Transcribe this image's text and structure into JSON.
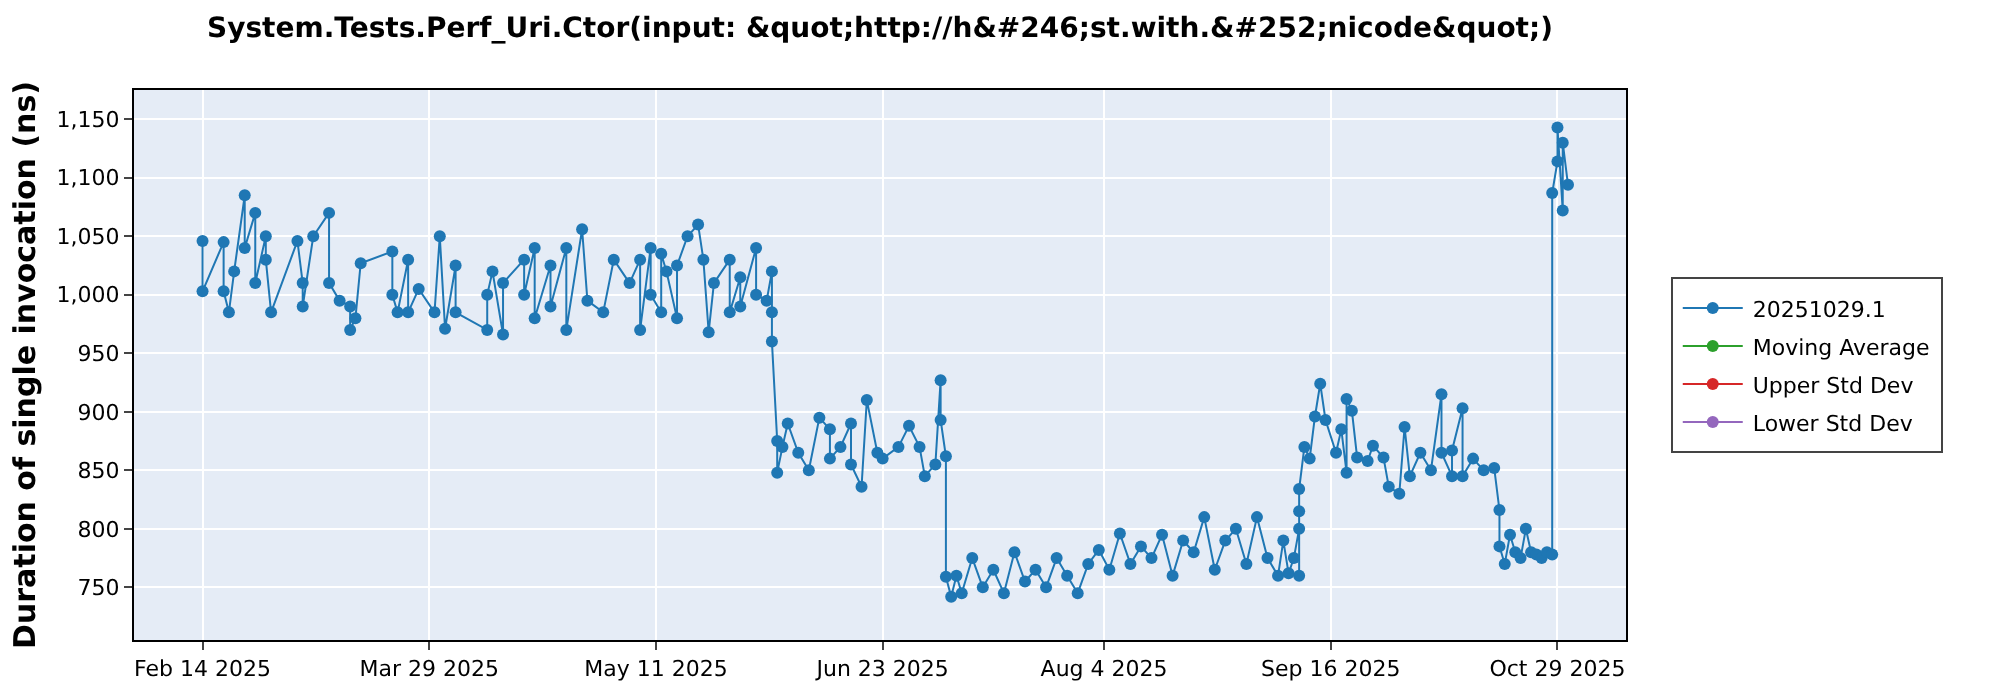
{
  "chart_data": {
    "type": "line",
    "title": "System.Tests.Perf_Uri.Ctor(input: &quot;http://h&#246;st.with.&#252;nicode&quot;)",
    "ylabel": "Duration of single invocation (ns)",
    "marker": "circle",
    "line_style": "solid",
    "grid": true,
    "legend": "right",
    "xlim": [
      "2025-02-01",
      "2025-11-11"
    ],
    "xticks": [
      {
        "value": "2025-02-14",
        "label": "Feb 14 2025"
      },
      {
        "value": "2025-03-29",
        "label": "Mar 29 2025"
      },
      {
        "value": "2025-05-11",
        "label": "May 11 2025"
      },
      {
        "value": "2025-06-23",
        "label": "Jun 23 2025"
      },
      {
        "value": "2025-08-04",
        "label": "Aug 4 2025"
      },
      {
        "value": "2025-09-16",
        "label": "Sep 16 2025"
      },
      {
        "value": "2025-10-29",
        "label": "Oct 29 2025"
      }
    ],
    "ylim": [
      705,
      1175
    ],
    "yticks": [
      750,
      800,
      850,
      900,
      950,
      {
        "value": 1000,
        "label": "1,000"
      },
      {
        "value": 1050,
        "label": "1,050"
      },
      {
        "value": 1100,
        "label": "1,100"
      },
      {
        "value": 1150,
        "label": "1,150"
      }
    ],
    "series": [
      {
        "name": "20251029.1",
        "color": "#1f77b4",
        "x": [
          "2025-02-14",
          "2025-02-14",
          "2025-02-18",
          "2025-02-18",
          "2025-02-19",
          "2025-02-20",
          "2025-02-22",
          "2025-02-22",
          "2025-02-24",
          "2025-02-24",
          "2025-02-26",
          "2025-02-26",
          "2025-02-27",
          "2025-03-04",
          "2025-03-05",
          "2025-03-05",
          "2025-03-07",
          "2025-03-10",
          "2025-03-10",
          "2025-03-12",
          "2025-03-14",
          "2025-03-14",
          "2025-03-15",
          "2025-03-16",
          "2025-03-22",
          "2025-03-22",
          "2025-03-23",
          "2025-03-25",
          "2025-03-25",
          "2025-03-27",
          "2025-03-30",
          "2025-03-31",
          "2025-04-01",
          "2025-04-03",
          "2025-04-03",
          "2025-04-09",
          "2025-04-09",
          "2025-04-10",
          "2025-04-12",
          "2025-04-12",
          "2025-04-16",
          "2025-04-16",
          "2025-04-18",
          "2025-04-18",
          "2025-04-21",
          "2025-04-21",
          "2025-04-24",
          "2025-04-24",
          "2025-04-27",
          "2025-04-28",
          "2025-05-01",
          "2025-05-03",
          "2025-05-06",
          "2025-05-08",
          "2025-05-08",
          "2025-05-10",
          "2025-05-10",
          "2025-05-12",
          "2025-05-12",
          "2025-05-13",
          "2025-05-15",
          "2025-05-15",
          "2025-05-17",
          "2025-05-19",
          "2025-05-20",
          "2025-05-21",
          "2025-05-22",
          "2025-05-25",
          "2025-05-25",
          "2025-05-27",
          "2025-05-27",
          "2025-05-30",
          "2025-05-30",
          "2025-06-01",
          "2025-06-02",
          "2025-06-02",
          "2025-06-02",
          "2025-06-03",
          "2025-06-03",
          "2025-06-04",
          "2025-06-05",
          "2025-06-07",
          "2025-06-09",
          "2025-06-11",
          "2025-06-13",
          "2025-06-13",
          "2025-06-15",
          "2025-06-17",
          "2025-06-17",
          "2025-06-19",
          "2025-06-20",
          "2025-06-22",
          "2025-06-23",
          "2025-06-26",
          "2025-06-28",
          "2025-06-30",
          "2025-07-01",
          "2025-07-03",
          "2025-07-04",
          "2025-07-04",
          "2025-07-05",
          "2025-07-05",
          "2025-07-06",
          "2025-07-07",
          "2025-07-08",
          "2025-07-10",
          "2025-07-12",
          "2025-07-14",
          "2025-07-16",
          "2025-07-18",
          "2025-07-20",
          "2025-07-22",
          "2025-07-24",
          "2025-07-26",
          "2025-07-28",
          "2025-07-30",
          "2025-08-01",
          "2025-08-03",
          "2025-08-05",
          "2025-08-07",
          "2025-08-09",
          "2025-08-11",
          "2025-08-13",
          "2025-08-15",
          "2025-08-17",
          "2025-08-19",
          "2025-08-21",
          "2025-08-23",
          "2025-08-25",
          "2025-08-27",
          "2025-08-29",
          "2025-08-31",
          "2025-09-02",
          "2025-09-04",
          "2025-09-06",
          "2025-09-07",
          "2025-09-08",
          "2025-09-09",
          "2025-09-10",
          "2025-09-10",
          "2025-09-10",
          "2025-09-10",
          "2025-09-11",
          "2025-09-12",
          "2025-09-13",
          "2025-09-14",
          "2025-09-15",
          "2025-09-17",
          "2025-09-18",
          "2025-09-19",
          "2025-09-19",
          "2025-09-20",
          "2025-09-21",
          "2025-09-23",
          "2025-09-24",
          "2025-09-26",
          "2025-09-27",
          "2025-09-29",
          "2025-09-30",
          "2025-10-01",
          "2025-10-03",
          "2025-10-05",
          "2025-10-07",
          "2025-10-07",
          "2025-10-09",
          "2025-10-09",
          "2025-10-11",
          "2025-10-11",
          "2025-10-13",
          "2025-10-15",
          "2025-10-17",
          "2025-10-18",
          "2025-10-18",
          "2025-10-19",
          "2025-10-20",
          "2025-10-21",
          "2025-10-22",
          "2025-10-23",
          "2025-10-24",
          "2025-10-25",
          "2025-10-26",
          "2025-10-27",
          "2025-10-28",
          "2025-10-28",
          "2025-10-29",
          "2025-10-29",
          "2025-10-30",
          "2025-10-30",
          "2025-10-31"
        ],
        "values": [
          1046,
          1003,
          1045,
          1003,
          985,
          1020,
          1085,
          1040,
          1070,
          1010,
          1050,
          1030,
          985,
          1046,
          1010,
          990,
          1050,
          1070,
          1010,
          995,
          990,
          970,
          980,
          1027,
          1037,
          1000,
          985,
          1030,
          985,
          1005,
          985,
          1050,
          971,
          1025,
          985,
          970,
          1000,
          1020,
          966,
          1010,
          1030,
          1000,
          1040,
          980,
          1025,
          990,
          1040,
          970,
          1056,
          995,
          985,
          1030,
          1010,
          1030,
          970,
          1040,
          1000,
          985,
          1035,
          1020,
          980,
          1025,
          1050,
          1060,
          1030,
          968,
          1010,
          1030,
          985,
          1015,
          990,
          1040,
          1000,
          995,
          1020,
          985,
          960,
          875,
          848,
          870,
          890,
          865,
          850,
          895,
          885,
          860,
          870,
          890,
          855,
          836,
          910,
          865,
          860,
          870,
          888,
          870,
          845,
          855,
          927,
          893,
          862,
          759,
          742,
          760,
          745,
          775,
          750,
          765,
          745,
          780,
          755,
          765,
          750,
          775,
          760,
          745,
          770,
          782,
          765,
          796,
          770,
          785,
          775,
          795,
          760,
          790,
          780,
          810,
          765,
          790,
          800,
          770,
          810,
          775,
          760,
          790,
          762,
          775,
          800,
          760,
          815,
          834,
          870,
          860,
          896,
          924,
          893,
          865,
          885,
          848,
          911,
          901,
          861,
          858,
          871,
          861,
          836,
          830,
          887,
          845,
          865,
          850,
          915,
          865,
          845,
          867,
          903,
          845,
          860,
          850,
          852,
          816,
          785,
          770,
          795,
          780,
          775,
          800,
          780,
          778,
          775,
          780,
          778,
          1087,
          1114,
          1143,
          1072,
          1130,
          1094
        ]
      },
      {
        "name": "Moving Average",
        "color": "#2ca02c"
      },
      {
        "name": "Upper Std Dev",
        "color": "#d62728"
      },
      {
        "name": "Lower Std Dev",
        "color": "#9467bd"
      }
    ]
  }
}
